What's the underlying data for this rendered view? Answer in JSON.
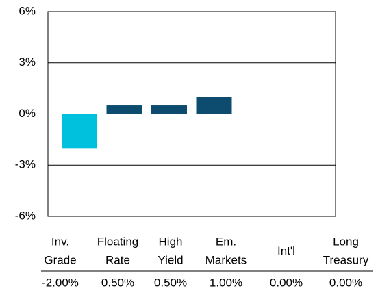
{
  "chart_data": {
    "type": "bar",
    "categories": [
      "Inv.\nGrade",
      "Floating\nRate",
      "High\nYield",
      "Em.\nMarkets",
      "Int'l",
      "Long\nTreasury"
    ],
    "values": [
      -2.0,
      0.5,
      0.5,
      1.0,
      0.0,
      0.0
    ],
    "value_labels": [
      "-2.00%",
      "0.50%",
      "0.50%",
      "1.00%",
      "0.00%",
      "0.00%"
    ],
    "colors": [
      "#00c1dd",
      "#0d4c6e",
      "#0d4c6e",
      "#0d4c6e",
      "#0d4c6e",
      "#0d4c6e"
    ],
    "ylim": [
      -6,
      6
    ],
    "yticks": [
      {
        "value": -6,
        "label": "-6%"
      },
      {
        "value": -3,
        "label": "-3%"
      },
      {
        "value": 0,
        "label": "0%"
      },
      {
        "value": 3,
        "label": "3%"
      },
      {
        "value": 6,
        "label": "6%"
      }
    ],
    "grid": true
  }
}
